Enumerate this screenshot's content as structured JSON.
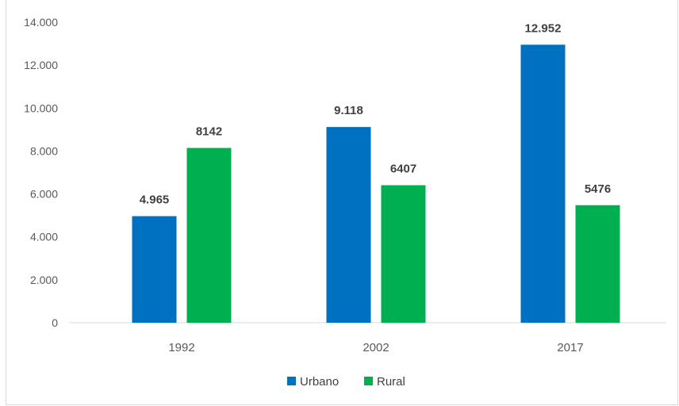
{
  "chart_data": {
    "type": "bar",
    "categories": [
      "1992",
      "2002",
      "2017"
    ],
    "series": [
      {
        "name": "Urbano",
        "color": "#0070C0",
        "values": [
          4965,
          9118,
          12952
        ],
        "labels": [
          "4.965",
          "9.118",
          "12.952"
        ]
      },
      {
        "name": "Rural",
        "color": "#00B050",
        "values": [
          8142,
          6407,
          5476
        ],
        "labels": [
          "8142",
          "6407",
          "5476"
        ]
      }
    ],
    "ylim": [
      0,
      14000
    ],
    "yticks": [
      0,
      2000,
      4000,
      6000,
      8000,
      10000,
      12000,
      14000
    ],
    "ytick_labels": [
      "0",
      "2.000",
      "4.000",
      "6.000",
      "8.000",
      "10.000",
      "12.000",
      "14.000"
    ],
    "grid": false,
    "legend_position": "bottom"
  }
}
